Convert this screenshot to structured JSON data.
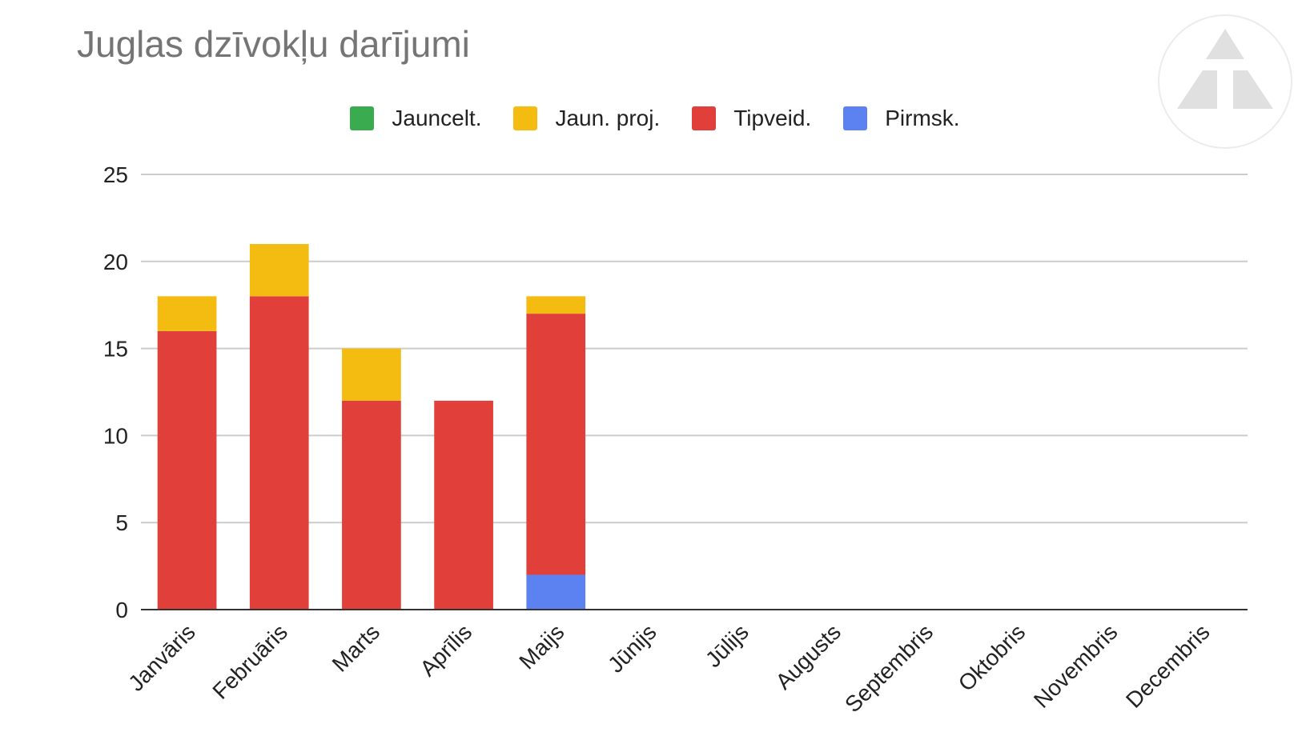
{
  "chart_data": {
    "type": "bar",
    "stacked": true,
    "title": "Juglas dzīvokļu darījumi",
    "xlabel": "",
    "ylabel": "",
    "ylim": [
      0,
      25
    ],
    "yticks": [
      0,
      5,
      10,
      15,
      20,
      25
    ],
    "grid": true,
    "legend_position": "top",
    "categories": [
      "Janvāris",
      "Februāris",
      "Marts",
      "Aprīlis",
      "Maijs",
      "Jūnijs",
      "Jūlijs",
      "Augusts",
      "Septembris",
      "Oktobris",
      "Novembris",
      "Decembris"
    ],
    "series": [
      {
        "name": "Jauncelt.",
        "color": "#3bab4f",
        "values": [
          0,
          0,
          0,
          0,
          0,
          0,
          0,
          0,
          0,
          0,
          0,
          0
        ]
      },
      {
        "name": "Jaun. proj.",
        "color": "#f4bb11",
        "values": [
          2,
          3,
          3,
          0,
          1,
          0,
          0,
          0,
          0,
          0,
          0,
          0
        ]
      },
      {
        "name": "Tipveid.",
        "color": "#e1403a",
        "values": [
          16,
          18,
          12,
          12,
          15,
          0,
          0,
          0,
          0,
          0,
          0,
          0
        ]
      },
      {
        "name": "Pirmsk.",
        "color": "#5b82f0",
        "values": [
          0,
          0,
          0,
          0,
          2,
          0,
          0,
          0,
          0,
          0,
          0,
          0
        ]
      }
    ],
    "stack_order_bottom_to_top": [
      "Pirmsk.",
      "Tipveid.",
      "Jaun. proj.",
      "Jauncelt."
    ]
  },
  "logo": {
    "icon": "triangle-logo-icon",
    "color": "#e0e0e0"
  }
}
